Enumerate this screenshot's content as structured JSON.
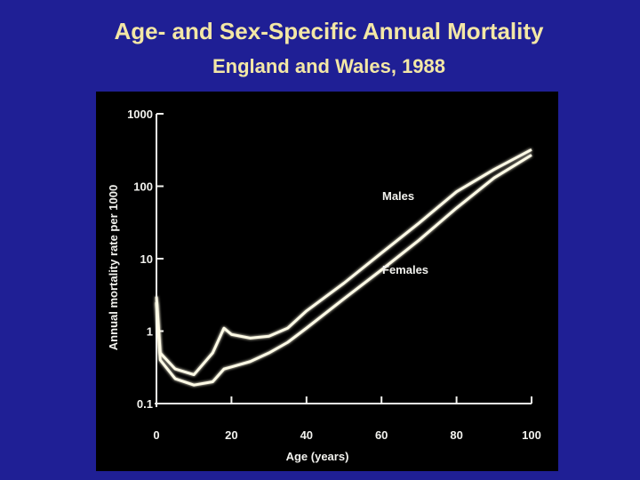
{
  "chart_data": {
    "type": "line",
    "title": "Age- and Sex-Specific Annual Mortality",
    "subtitle": "England and Wales, 1988",
    "xlabel": "Age (years)",
    "ylabel": "Annual mortality rate per 1000",
    "x": [
      0,
      1,
      5,
      10,
      15,
      18,
      20,
      25,
      30,
      35,
      40,
      50,
      60,
      70,
      80,
      90,
      100
    ],
    "series": [
      {
        "name": "Males",
        "color": "#fffbe6",
        "values": [
          3,
          0.5,
          0.3,
          0.25,
          0.5,
          1.1,
          0.9,
          0.8,
          0.85,
          1.1,
          1.9,
          4.6,
          12,
          31,
          84,
          170,
          320
        ]
      },
      {
        "name": "Females",
        "color": "#fffbe6",
        "values": [
          2.5,
          0.4,
          0.22,
          0.18,
          0.2,
          0.3,
          0.32,
          0.38,
          0.5,
          0.7,
          1.1,
          2.8,
          7,
          18,
          50,
          130,
          270
        ]
      }
    ],
    "xlim": [
      0,
      100
    ],
    "xticks": [
      0,
      20,
      40,
      60,
      80,
      100
    ],
    "ylim": [
      0.1,
      1000
    ],
    "yticks": [
      0.1,
      1,
      10,
      100,
      1000
    ],
    "log_y": true
  }
}
